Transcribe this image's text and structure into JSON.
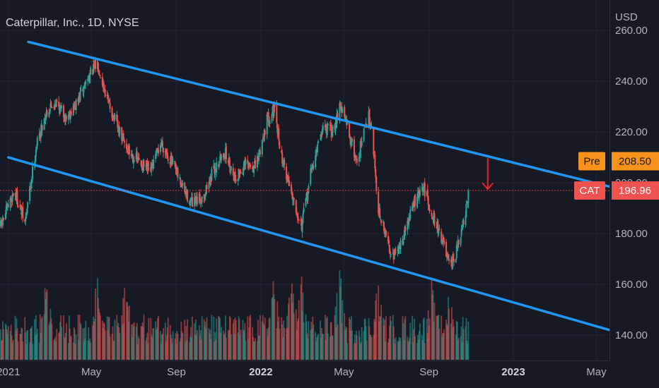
{
  "chart_data": {
    "type": "candlestick",
    "title": "Caterpillar, Inc., 1D, NYSE",
    "currency": "USD",
    "ylim": [
      130,
      272
    ],
    "xlim": [
      "2020-12-20",
      "2023-05-20"
    ],
    "y_ticks": [
      "260.00",
      "240.00",
      "220.00",
      "200.00",
      "180.00",
      "160.00",
      "140.00"
    ],
    "x_ticks": [
      {
        "label": "2021",
        "date": "2021-01-01",
        "bold": false
      },
      {
        "label": "May",
        "date": "2021-05-01",
        "bold": false
      },
      {
        "label": "Sep",
        "date": "2021-09-01",
        "bold": false
      },
      {
        "label": "2022",
        "date": "2022-01-01",
        "bold": true
      },
      {
        "label": "May",
        "date": "2022-05-01",
        "bold": false
      },
      {
        "label": "Sep",
        "date": "2022-09-01",
        "bold": false
      },
      {
        "label": "2023",
        "date": "2023-01-01",
        "bold": true
      },
      {
        "label": "May",
        "date": "2023-05-01",
        "bold": false
      }
    ],
    "price_path": [
      [
        "2020-12-21",
        183
      ],
      [
        "2021-01-10",
        197
      ],
      [
        "2021-01-25",
        184
      ],
      [
        "2021-02-10",
        214
      ],
      [
        "2021-02-25",
        228
      ],
      [
        "2021-03-10",
        232
      ],
      [
        "2021-03-25",
        226
      ],
      [
        "2021-04-10",
        231
      ],
      [
        "2021-04-25",
        241
      ],
      [
        "2021-05-10",
        247
      ],
      [
        "2021-05-25",
        232
      ],
      [
        "2021-06-10",
        220
      ],
      [
        "2021-06-25",
        212
      ],
      [
        "2021-07-10",
        208
      ],
      [
        "2021-07-25",
        204
      ],
      [
        "2021-08-10",
        216
      ],
      [
        "2021-08-25",
        208
      ],
      [
        "2021-09-10",
        198
      ],
      [
        "2021-09-25",
        191
      ],
      [
        "2021-10-10",
        195
      ],
      [
        "2021-10-25",
        205
      ],
      [
        "2021-11-10",
        212
      ],
      [
        "2021-11-25",
        202
      ],
      [
        "2021-12-10",
        207
      ],
      [
        "2021-12-25",
        206
      ],
      [
        "2022-01-10",
        225
      ],
      [
        "2022-01-20",
        229
      ],
      [
        "2022-02-01",
        209
      ],
      [
        "2022-02-15",
        196
      ],
      [
        "2022-03-01",
        183
      ],
      [
        "2022-03-15",
        205
      ],
      [
        "2022-04-01",
        222
      ],
      [
        "2022-04-15",
        220
      ],
      [
        "2022-04-25",
        231
      ],
      [
        "2022-05-05",
        223
      ],
      [
        "2022-05-20",
        208
      ],
      [
        "2022-06-05",
        227
      ],
      [
        "2022-06-10",
        223
      ],
      [
        "2022-06-20",
        189
      ],
      [
        "2022-07-05",
        175
      ],
      [
        "2022-07-15",
        171
      ],
      [
        "2022-07-25",
        178
      ],
      [
        "2022-08-10",
        192
      ],
      [
        "2022-08-25",
        198
      ],
      [
        "2022-09-05",
        188
      ],
      [
        "2022-09-20",
        178
      ],
      [
        "2022-10-01",
        166
      ],
      [
        "2022-10-10",
        172
      ],
      [
        "2022-10-20",
        183
      ],
      [
        "2022-10-31",
        197
      ]
    ],
    "volume_scale_max": 100,
    "volume_spikes": [
      [
        "2021-02-25",
        95
      ],
      [
        "2021-05-10",
        88
      ],
      [
        "2021-06-20",
        82
      ],
      [
        "2022-01-20",
        92
      ],
      [
        "2022-02-15",
        86
      ],
      [
        "2022-03-01",
        80
      ],
      [
        "2022-04-25",
        90
      ],
      [
        "2022-06-20",
        84
      ],
      [
        "2022-09-05",
        78
      ],
      [
        "2022-10-01",
        75
      ]
    ],
    "channel_upper": {
      "start": [
        "2021-01-30",
        255.5
      ],
      "end": [
        "2023-05-20",
        198.5
      ]
    },
    "channel_lower": {
      "start": [
        "2021-01-01",
        210
      ],
      "end": [
        "2023-05-20",
        142
      ]
    },
    "current_price_line": 196.96,
    "annotation_arrow": {
      "date": "2022-11-25",
      "y_from": 209.5,
      "y_to": 197.5
    },
    "colors": {
      "background": "#161a25",
      "up": "#26a69a",
      "down": "#ef5350",
      "volume_up": "#26a69a",
      "volume_down": "#ef5350",
      "channel": "#2196f3",
      "price_line": "#ef5350",
      "arrow": "#e8232b",
      "grid": "#232733",
      "pre_badge": "#f7931a",
      "cat_badge": "#ef5350"
    }
  },
  "price_badges": {
    "pre": {
      "label": "Pre",
      "value": "208.50",
      "price": 208.5
    },
    "last": {
      "label": "CAT",
      "value": "196.96",
      "price": 196.96
    }
  }
}
